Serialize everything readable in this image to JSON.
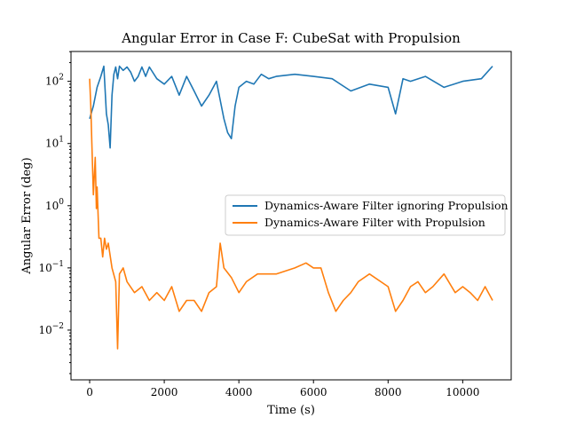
{
  "chart_data": {
    "type": "line",
    "title": "Angular Error in Case F: CubeSat with Propulsion",
    "xlabel": "Time (s)",
    "ylabel": "Angular Error (deg)",
    "xlim": [
      -500,
      11300
    ],
    "ylim_log10": [
      -2.8,
      2.48
    ],
    "y_scale": "log",
    "x_ticks": [
      0,
      2000,
      4000,
      6000,
      8000,
      10000
    ],
    "x_tick_labels": [
      "0",
      "2000",
      "4000",
      "6000",
      "8000",
      "10000"
    ],
    "y_ticks_log10": [
      -2,
      -1,
      0,
      1,
      2
    ],
    "y_tick_labels": [
      "10",
      "10",
      "10",
      "10",
      "10"
    ],
    "y_tick_exponents": [
      "−2",
      "−1",
      "0",
      "1",
      "2"
    ],
    "legend_position": "center-right",
    "grid": false,
    "series": [
      {
        "name": "Dynamics-Aware Filter ignoring Propulsion",
        "color": "#1f77b4",
        "x": [
          0,
          100,
          200,
          300,
          380,
          450,
          500,
          550,
          600,
          650,
          700,
          750,
          800,
          900,
          1000,
          1100,
          1200,
          1300,
          1400,
          1500,
          1600,
          1800,
          2000,
          2200,
          2400,
          2600,
          2800,
          3000,
          3200,
          3400,
          3600,
          3700,
          3800,
          3900,
          4000,
          4200,
          4400,
          4600,
          4800,
          5000,
          5500,
          6000,
          6500,
          7000,
          7500,
          8000,
          8200,
          8400,
          8600,
          9000,
          9500,
          10000,
          10500,
          10800
        ],
        "y": [
          25,
          40,
          80,
          120,
          175,
          30,
          20,
          8.5,
          60,
          130,
          170,
          110,
          175,
          150,
          170,
          140,
          100,
          120,
          170,
          120,
          170,
          110,
          90,
          120,
          60,
          120,
          70,
          40,
          60,
          100,
          25,
          15,
          12,
          40,
          80,
          100,
          90,
          130,
          110,
          120,
          130,
          120,
          110,
          70,
          90,
          80,
          30,
          110,
          100,
          120,
          80,
          100,
          110,
          175
        ]
      },
      {
        "name": "Dynamics-Aware Filter with Propulsion",
        "color": "#ff7f0e",
        "x": [
          0,
          30,
          60,
          100,
          150,
          180,
          200,
          250,
          300,
          350,
          400,
          450,
          500,
          600,
          700,
          750,
          800,
          900,
          1000,
          1200,
          1400,
          1600,
          1800,
          2000,
          2200,
          2400,
          2600,
          2800,
          3000,
          3200,
          3400,
          3500,
          3600,
          3800,
          4000,
          4200,
          4500,
          5000,
          5500,
          5800,
          6000,
          6200,
          6400,
          6600,
          6800,
          7000,
          7200,
          7500,
          8000,
          8200,
          8400,
          8600,
          8800,
          9000,
          9200,
          9500,
          9800,
          10000,
          10200,
          10400,
          10600,
          10800
        ],
        "y": [
          110,
          40,
          10,
          1.5,
          6.0,
          0.9,
          2.0,
          0.3,
          0.3,
          0.15,
          0.3,
          0.2,
          0.25,
          0.1,
          0.06,
          0.005,
          0.08,
          0.1,
          0.06,
          0.04,
          0.05,
          0.03,
          0.04,
          0.03,
          0.05,
          0.02,
          0.03,
          0.03,
          0.02,
          0.04,
          0.05,
          0.25,
          0.1,
          0.07,
          0.04,
          0.06,
          0.08,
          0.08,
          0.1,
          0.12,
          0.1,
          0.1,
          0.04,
          0.02,
          0.03,
          0.04,
          0.06,
          0.08,
          0.05,
          0.02,
          0.03,
          0.05,
          0.06,
          0.04,
          0.05,
          0.08,
          0.04,
          0.05,
          0.04,
          0.03,
          0.05,
          0.03
        ]
      }
    ]
  }
}
